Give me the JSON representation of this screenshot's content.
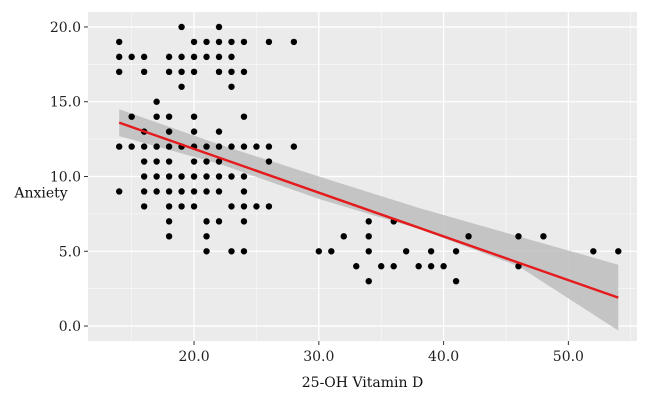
{
  "chart_data": {
    "type": "scatter",
    "xlabel": "25-OH Vitamin D",
    "ylabel": "Anxiety",
    "xlim": [
      11.5,
      55.5
    ],
    "ylim": [
      -1.0,
      21.0
    ],
    "x_ticks": [
      20,
      30,
      40,
      50
    ],
    "x_tick_labels": [
      "20.0",
      "30.0",
      "40.0",
      "50.0"
    ],
    "y_ticks": [
      0,
      5,
      10,
      15,
      20
    ],
    "y_tick_labels": [
      "0.0",
      "5.0",
      "10.0",
      "15.0",
      "20.0"
    ],
    "grid": true,
    "legend": "none",
    "points": [
      [
        14,
        19
      ],
      [
        14,
        18
      ],
      [
        14,
        17
      ],
      [
        14,
        12
      ],
      [
        14,
        9
      ],
      [
        15,
        18
      ],
      [
        15,
        14
      ],
      [
        15,
        12
      ],
      [
        16,
        18
      ],
      [
        16,
        17
      ],
      [
        16,
        13
      ],
      [
        16,
        12
      ],
      [
        16,
        11
      ],
      [
        16,
        10
      ],
      [
        16,
        9
      ],
      [
        16,
        8
      ],
      [
        17,
        15
      ],
      [
        17,
        14
      ],
      [
        17,
        12
      ],
      [
        17,
        11
      ],
      [
        17,
        10
      ],
      [
        17,
        9
      ],
      [
        18,
        18
      ],
      [
        18,
        17
      ],
      [
        18,
        14
      ],
      [
        18,
        13
      ],
      [
        18,
        12
      ],
      [
        18,
        11
      ],
      [
        18,
        10
      ],
      [
        18,
        9
      ],
      [
        18,
        8
      ],
      [
        18,
        7
      ],
      [
        18,
        6
      ],
      [
        19,
        20
      ],
      [
        19,
        18
      ],
      [
        19,
        17
      ],
      [
        19,
        16
      ],
      [
        19,
        12
      ],
      [
        19,
        10
      ],
      [
        19,
        9
      ],
      [
        19,
        8
      ],
      [
        20,
        19
      ],
      [
        20,
        18
      ],
      [
        20,
        17
      ],
      [
        20,
        14
      ],
      [
        20,
        13
      ],
      [
        20,
        12
      ],
      [
        20,
        11
      ],
      [
        20,
        10
      ],
      [
        20,
        9
      ],
      [
        20,
        8
      ],
      [
        21,
        19
      ],
      [
        21,
        18
      ],
      [
        21,
        12
      ],
      [
        21,
        11
      ],
      [
        21,
        10
      ],
      [
        21,
        9
      ],
      [
        21,
        7
      ],
      [
        21,
        6
      ],
      [
        21,
        5
      ],
      [
        22,
        20
      ],
      [
        22,
        19
      ],
      [
        22,
        18
      ],
      [
        22,
        17
      ],
      [
        22,
        13
      ],
      [
        22,
        12
      ],
      [
        22,
        11
      ],
      [
        22,
        10
      ],
      [
        22,
        9
      ],
      [
        22,
        7
      ],
      [
        23,
        19
      ],
      [
        23,
        18
      ],
      [
        23,
        17
      ],
      [
        23,
        16
      ],
      [
        23,
        12
      ],
      [
        23,
        10
      ],
      [
        23,
        8
      ],
      [
        23,
        5
      ],
      [
        24,
        19
      ],
      [
        24,
        17
      ],
      [
        24,
        14
      ],
      [
        24,
        12
      ],
      [
        24,
        10
      ],
      [
        24,
        9
      ],
      [
        24,
        8
      ],
      [
        24,
        7
      ],
      [
        24,
        5
      ],
      [
        25,
        12
      ],
      [
        25,
        8
      ],
      [
        26,
        19
      ],
      [
        26,
        12
      ],
      [
        26,
        11
      ],
      [
        26,
        8
      ],
      [
        28,
        19
      ],
      [
        28,
        12
      ],
      [
        30,
        5
      ],
      [
        31,
        5
      ],
      [
        32,
        6
      ],
      [
        33,
        4
      ],
      [
        34,
        7
      ],
      [
        34,
        6
      ],
      [
        34,
        5
      ],
      [
        34,
        3
      ],
      [
        35,
        4
      ],
      [
        36,
        7
      ],
      [
        36,
        4
      ],
      [
        37,
        5
      ],
      [
        38,
        4
      ],
      [
        39,
        5
      ],
      [
        39,
        4
      ],
      [
        40,
        4
      ],
      [
        41,
        5
      ],
      [
        41,
        3
      ],
      [
        42,
        6
      ],
      [
        46,
        6
      ],
      [
        46,
        4
      ],
      [
        48,
        6
      ],
      [
        52,
        5
      ],
      [
        54,
        5
      ]
    ],
    "regression": {
      "x": [
        14,
        54
      ],
      "y": [
        13.6,
        1.9
      ]
    },
    "confidence_band": {
      "x": [
        14,
        22,
        30,
        38,
        46,
        54
      ],
      "upper": [
        14.5,
        12.15,
        10.0,
        7.9,
        6.0,
        4.1
      ],
      "lower": [
        12.7,
        10.85,
        8.5,
        6.5,
        4.0,
        -0.3
      ]
    },
    "colors": {
      "panel": "#ebebeb",
      "grid": "#ffffff",
      "points": "#000000",
      "line": "#e41a1c",
      "band": "#bdbdbd"
    }
  }
}
